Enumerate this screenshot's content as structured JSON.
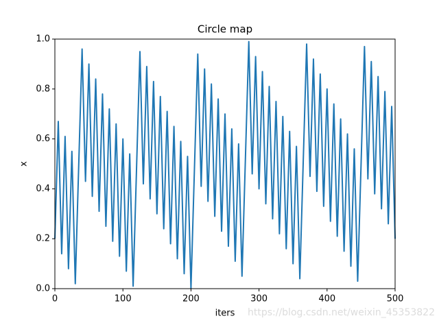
{
  "chart_data": {
    "type": "line",
    "title": "Circle map",
    "x_label": "iters",
    "y_label": "x",
    "watermark": "https://blog.csdn.net/weixin_45353822",
    "color": "#1f77b4",
    "xlim": [
      0,
      500
    ],
    "ylim": [
      0,
      1
    ],
    "xticks": [
      0,
      100,
      200,
      300,
      400,
      500
    ],
    "yticks": [
      {
        "value": 0,
        "label": "0.0"
      },
      {
        "value": 0.2,
        "label": "0.2"
      },
      {
        "value": 0.4,
        "label": "0.4"
      },
      {
        "value": 0.6,
        "label": "0.6"
      },
      {
        "value": 0.8,
        "label": "0.8"
      },
      {
        "value": 1,
        "label": "1.0"
      }
    ],
    "x": [
      0,
      5,
      10,
      15,
      20,
      25,
      30,
      35,
      40,
      45,
      50,
      55,
      60,
      65,
      70,
      75,
      80,
      85,
      90,
      95,
      100,
      105,
      110,
      115,
      120,
      125,
      130,
      135,
      140,
      145,
      150,
      155,
      160,
      165,
      170,
      175,
      180,
      185,
      190,
      195,
      200,
      205,
      210,
      215,
      220,
      225,
      230,
      235,
      240,
      245,
      250,
      255,
      260,
      265,
      270,
      275,
      280,
      285,
      290,
      295,
      300,
      305,
      310,
      315,
      320,
      325,
      330,
      335,
      340,
      345,
      350,
      355,
      360,
      365,
      370,
      375,
      380,
      385,
      390,
      395,
      400,
      405,
      410,
      415,
      420,
      425,
      430,
      435,
      440,
      445,
      450,
      455,
      460,
      465,
      470,
      475,
      480,
      485,
      490,
      495,
      500
    ],
    "values": [
      0.2,
      0.67,
      0.14,
      0.61,
      0.08,
      0.55,
      0.02,
      0.49,
      0.96,
      0.43,
      0.9,
      0.37,
      0.84,
      0.31,
      0.78,
      0.25,
      0.72,
      0.19,
      0.66,
      0.13,
      0.6,
      0.07,
      0.54,
      0.01,
      0.48,
      0.95,
      0.42,
      0.89,
      0.36,
      0.83,
      0.3,
      0.77,
      0.24,
      0.71,
      0.18,
      0.65,
      0.12,
      0.59,
      0.06,
      0.53,
      0.0,
      0.47,
      0.94,
      0.41,
      0.88,
      0.35,
      0.82,
      0.29,
      0.76,
      0.23,
      0.7,
      0.17,
      0.64,
      0.11,
      0.58,
      0.05,
      0.52,
      0.99,
      0.46,
      0.93,
      0.4,
      0.87,
      0.34,
      0.81,
      0.28,
      0.75,
      0.22,
      0.69,
      0.16,
      0.63,
      0.1,
      0.57,
      0.04,
      0.51,
      0.98,
      0.45,
      0.92,
      0.39,
      0.86,
      0.33,
      0.8,
      0.27,
      0.74,
      0.21,
      0.68,
      0.15,
      0.62,
      0.09,
      0.56,
      0.03,
      0.5,
      0.97,
      0.44,
      0.91,
      0.38,
      0.85,
      0.32,
      0.79,
      0.26,
      0.73,
      0.2
    ]
  }
}
